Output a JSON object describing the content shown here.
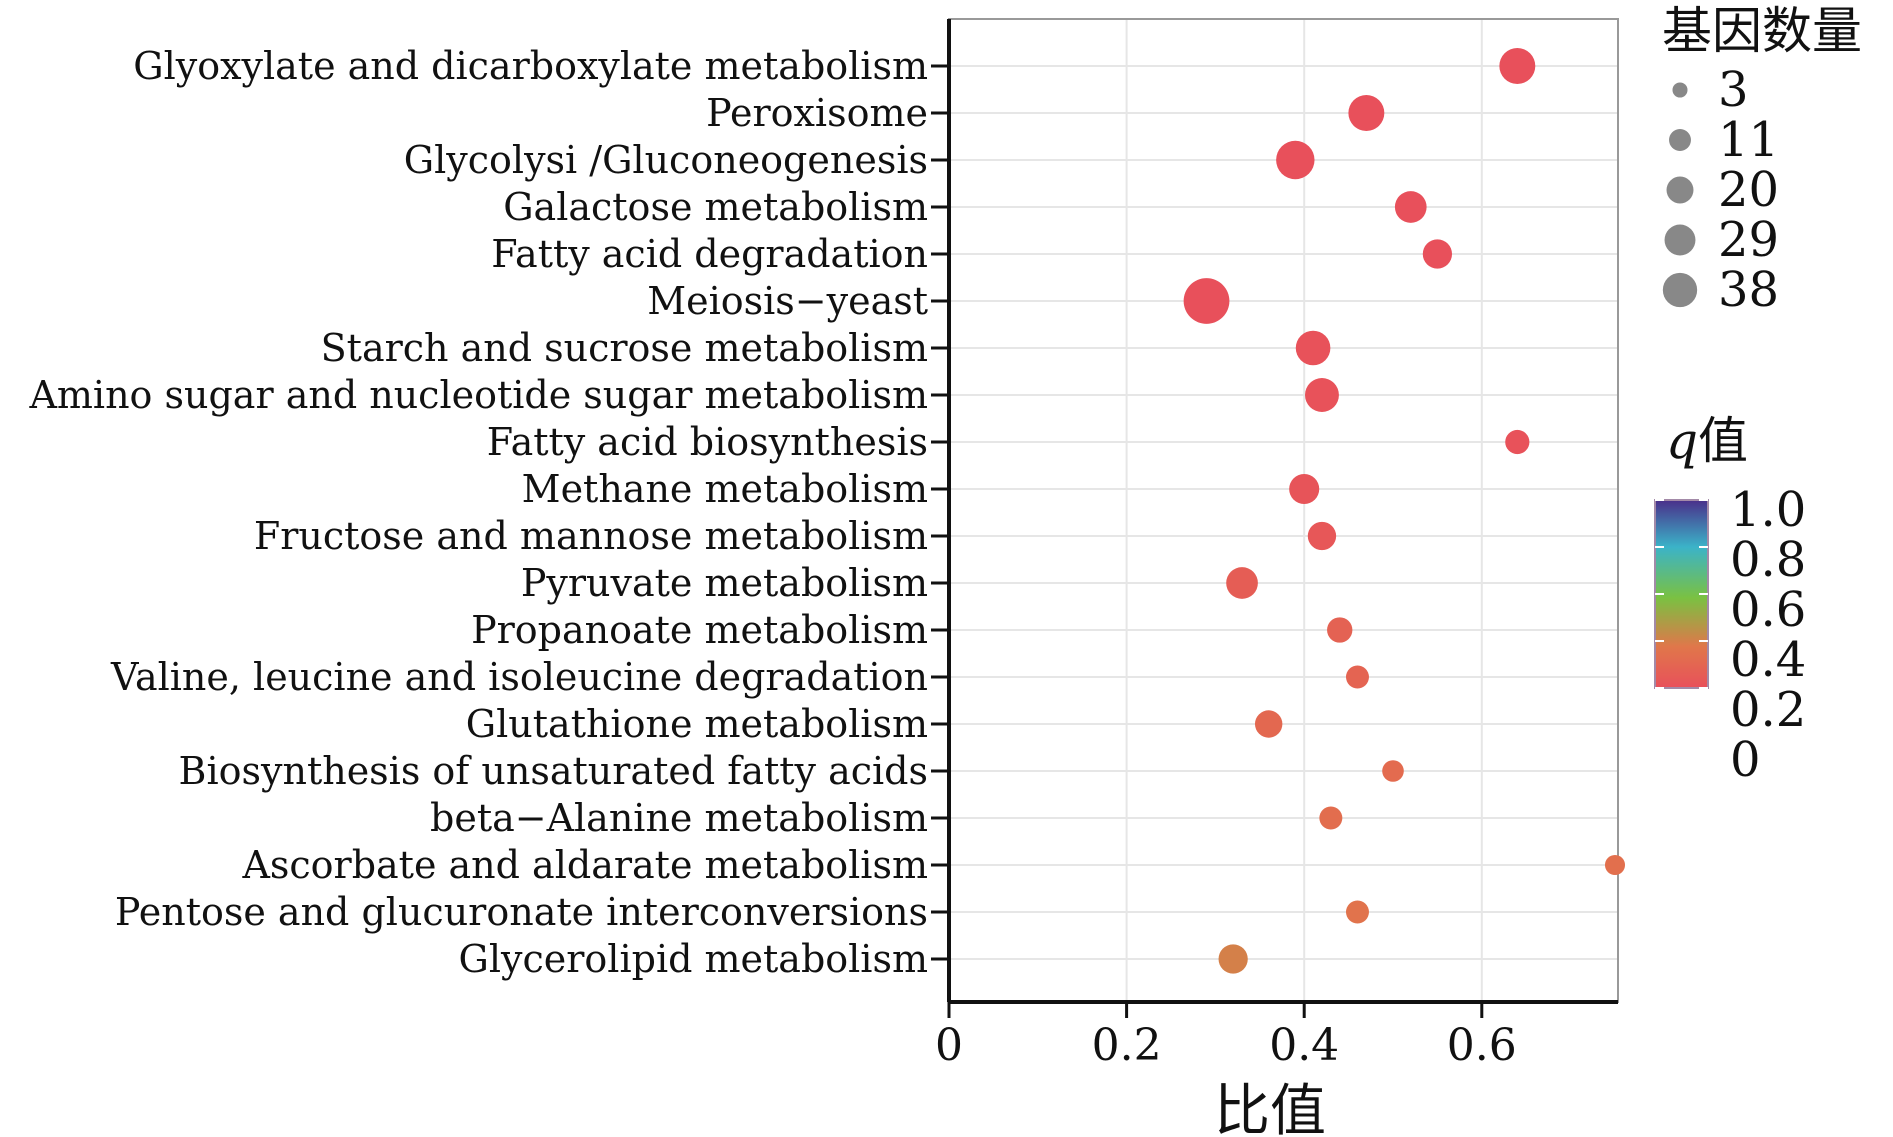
{
  "chart_data": {
    "type": "scatter",
    "title": "",
    "xlabel": "比值",
    "ylabel": "",
    "xlim": [
      0,
      0.76
    ],
    "xticks": [
      {
        "value": 0,
        "label": "0"
      },
      {
        "value": 0.2,
        "label": "0.2"
      },
      {
        "value": 0.4,
        "label": "0.4"
      },
      {
        "value": 0.6,
        "label": "0.6"
      }
    ],
    "grid": true,
    "categories": [
      "Glyoxylate and dicarboxylate metabolism",
      "Peroxisome",
      "Glycolysi /Gluconeogenesis",
      "Galactose metabolism",
      "Fatty acid degradation",
      "Meiosis−yeast",
      "Starch and sucrose metabolism",
      "Amino sugar and nucleotide sugar metabolism",
      "Fatty acid biosynthesis",
      "Methane metabolism",
      "Fructose and mannose metabolism",
      "Pyruvate metabolism",
      "Propanoate metabolism",
      "Valine, leucine and isoleucine degradation",
      "Glutathione metabolism",
      "Biosynthesis of unsaturated fatty acids",
      "beta−Alanine metabolism",
      "Ascorbate and aldarate metabolism",
      "Pentose and glucuronate interconversions",
      "Glycerolipid metabolism"
    ],
    "points": [
      {
        "category": "Glyoxylate and dicarboxylate metabolism",
        "x": 0.64,
        "count": 20,
        "q": 0.2
      },
      {
        "category": "Peroxisome",
        "x": 0.47,
        "count": 20,
        "q": 0.2
      },
      {
        "category": "Glycolysi /Gluconeogenesis",
        "x": 0.39,
        "count": 24,
        "q": 0.2
      },
      {
        "category": "Galactose metabolism",
        "x": 0.52,
        "count": 14,
        "q": 0.2
      },
      {
        "category": "Fatty acid degradation",
        "x": 0.55,
        "count": 11,
        "q": 0.2
      },
      {
        "category": "Meiosis−yeast",
        "x": 0.29,
        "count": 38,
        "q": 0.2
      },
      {
        "category": "Starch and sucrose metabolism",
        "x": 0.41,
        "count": 18,
        "q": 0.21
      },
      {
        "category": "Amino sugar and nucleotide sugar metabolism",
        "x": 0.42,
        "count": 17,
        "q": 0.21
      },
      {
        "category": "Fatty acid biosynthesis",
        "x": 0.64,
        "count": 6,
        "q": 0.21
      },
      {
        "category": "Methane metabolism",
        "x": 0.4,
        "count": 12,
        "q": 0.22
      },
      {
        "category": "Fructose and mannose metabolism",
        "x": 0.42,
        "count": 10,
        "q": 0.23
      },
      {
        "category": "Pyruvate metabolism",
        "x": 0.33,
        "count": 14,
        "q": 0.26
      },
      {
        "category": "Propanoate metabolism",
        "x": 0.44,
        "count": 7,
        "q": 0.28
      },
      {
        "category": "Valine, leucine and isoleucine degradation",
        "x": 0.46,
        "count": 5,
        "q": 0.29
      },
      {
        "category": "Glutathione metabolism",
        "x": 0.36,
        "count": 9,
        "q": 0.31
      },
      {
        "category": "Biosynthesis of unsaturated fatty acids",
        "x": 0.5,
        "count": 4,
        "q": 0.32
      },
      {
        "category": "beta−Alanine metabolism",
        "x": 0.43,
        "count": 5,
        "q": 0.33
      },
      {
        "category": "Ascorbate and aldarate metabolism",
        "x": 0.75,
        "count": 3,
        "q": 0.34
      },
      {
        "category": "Pentose and glucuronate interconversions",
        "x": 0.46,
        "count": 5,
        "q": 0.36
      },
      {
        "category": "Glycerolipid metabolism",
        "x": 0.32,
        "count": 11,
        "q": 0.4
      }
    ],
    "legend_size": {
      "title": "基因数量",
      "values": [
        3,
        11,
        20,
        29,
        38
      ],
      "labels": [
        "3",
        "11",
        "20",
        "29",
        "38"
      ],
      "placement": "top-right"
    },
    "legend_color": {
      "title_italic": "q",
      "title_rest": "值",
      "ticks": [
        {
          "value": 1.0,
          "label": "1.0"
        },
        {
          "value": 0.8,
          "label": "0.8"
        },
        {
          "value": 0.6,
          "label": "0.6"
        },
        {
          "value": 0.4,
          "label": "0.4"
        },
        {
          "value": 0.2,
          "label": "0.2"
        },
        {
          "value": 0,
          "label": "0"
        }
      ],
      "range": [
        0.2,
        1.0
      ],
      "colors": [
        "#e8505b",
        "#e8604e",
        "#7ac142",
        "#3bb3c8",
        "#4a2f8a"
      ],
      "placement": "right"
    }
  }
}
